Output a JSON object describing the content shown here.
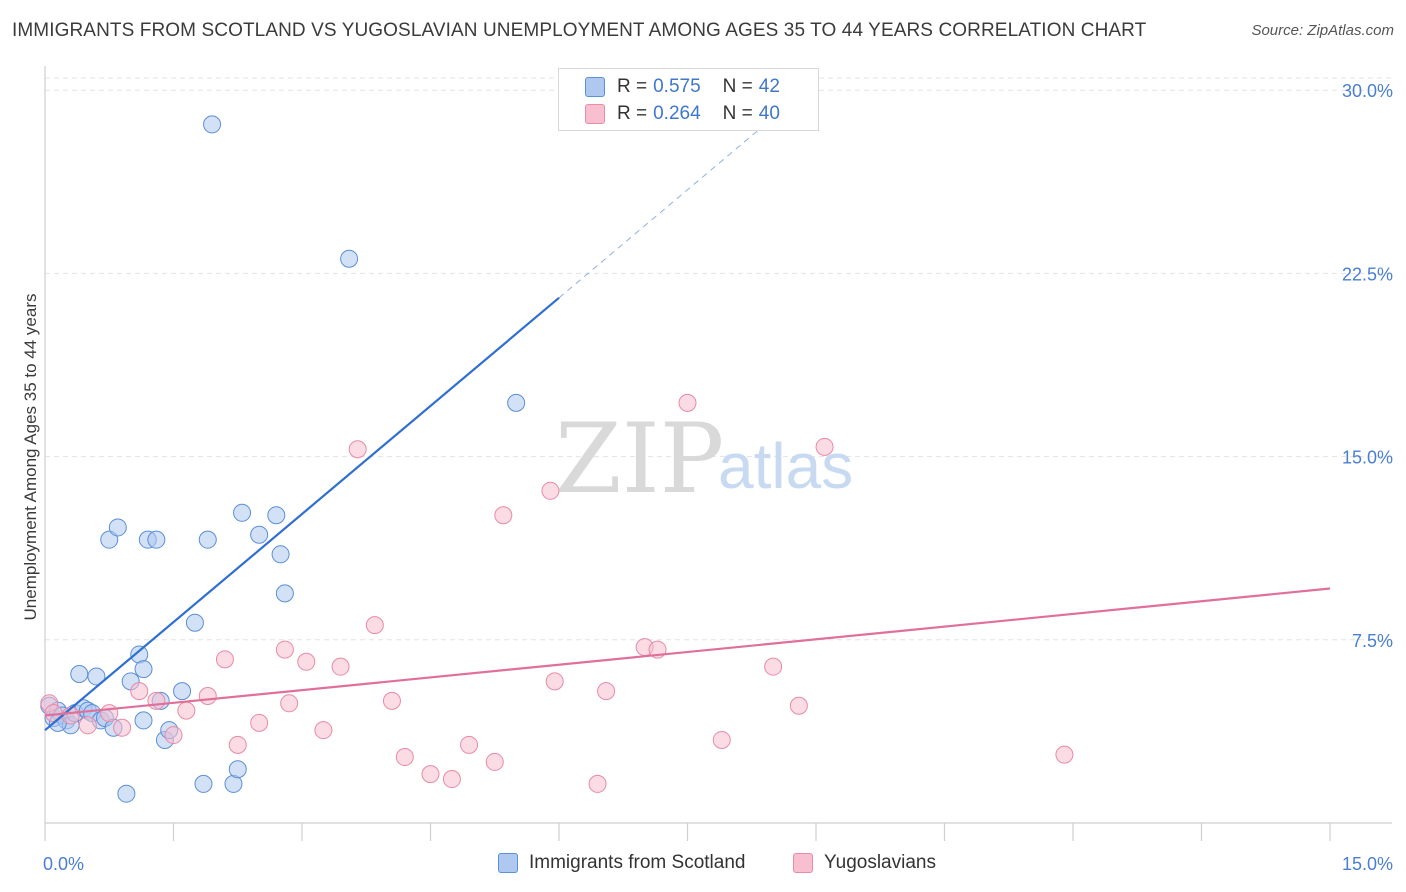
{
  "title": "IMMIGRANTS FROM SCOTLAND VS YUGOSLAVIAN UNEMPLOYMENT AMONG AGES 35 TO 44 YEARS CORRELATION CHART",
  "source": "Source: ZipAtlas.com",
  "watermark": {
    "zip": "ZIP",
    "atlas": "atlas"
  },
  "colors": {
    "blue_fill": "#aec8f0",
    "blue_stroke": "#5b8fd6",
    "blue_line": "#2e6fd0",
    "pink_fill": "#f7bfd0",
    "pink_stroke": "#e98aa8",
    "pink_line": "#e0709a",
    "grid": "#e3e3e3",
    "axis_text": "#4a7fd0"
  },
  "legend": {
    "rows": [
      {
        "r_label": "R =",
        "r_value": "0.575",
        "n_label": "N =",
        "n_value": "42"
      },
      {
        "r_label": "R =",
        "r_value": "0.264",
        "n_label": "N =",
        "n_value": "40"
      }
    ]
  },
  "bottom_legend": {
    "blue": "Immigrants from Scotland",
    "pink": "Yugoslavians"
  },
  "chart_data": {
    "type": "scatter",
    "title": "IMMIGRANTS FROM SCOTLAND VS YUGOSLAVIAN UNEMPLOYMENT AMONG AGES 35 TO 44 YEARS CORRELATION CHART",
    "xlabel": "",
    "ylabel": "Unemployment Among Ages 35 to 44 years",
    "xlim": [
      0,
      15
    ],
    "ylim": [
      0,
      30.5
    ],
    "x_tick_labels": [
      "0.0%",
      "15.0%"
    ],
    "y_ticks": [
      7.5,
      15.0,
      22.5,
      30.0
    ],
    "y_tick_labels": [
      "7.5%",
      "15.0%",
      "22.5%",
      "30.0%"
    ],
    "grid": true,
    "legend_position": "top-center",
    "series": [
      {
        "name": "Immigrants from Scotland",
        "color": "blue",
        "R": 0.575,
        "N": 42,
        "trend": {
          "x0": 0.0,
          "y0": 3.8,
          "x1": 6.0,
          "y1": 21.5,
          "dash_to_x": 9.0
        },
        "points": [
          [
            0.05,
            4.8
          ],
          [
            0.1,
            4.3
          ],
          [
            0.15,
            4.6
          ],
          [
            0.2,
            4.4
          ],
          [
            0.25,
            4.2
          ],
          [
            0.3,
            4.0
          ],
          [
            0.35,
            4.5
          ],
          [
            0.4,
            6.1
          ],
          [
            0.45,
            4.7
          ],
          [
            0.5,
            4.6
          ],
          [
            0.55,
            4.5
          ],
          [
            0.6,
            6.0
          ],
          [
            0.65,
            4.2
          ],
          [
            0.7,
            4.3
          ],
          [
            0.75,
            11.6
          ],
          [
            0.8,
            3.9
          ],
          [
            0.85,
            12.1
          ],
          [
            0.95,
            1.2
          ],
          [
            1.0,
            5.8
          ],
          [
            1.1,
            6.9
          ],
          [
            1.15,
            4.2
          ],
          [
            1.2,
            11.6
          ],
          [
            1.3,
            11.6
          ],
          [
            1.35,
            5.0
          ],
          [
            1.4,
            3.4
          ],
          [
            1.45,
            3.8
          ],
          [
            1.6,
            5.4
          ],
          [
            1.75,
            8.2
          ],
          [
            1.85,
            1.6
          ],
          [
            1.9,
            11.6
          ],
          [
            1.95,
            28.6
          ],
          [
            2.2,
            1.6
          ],
          [
            2.25,
            2.2
          ],
          [
            2.3,
            12.7
          ],
          [
            2.5,
            11.8
          ],
          [
            2.7,
            12.6
          ],
          [
            2.75,
            11.0
          ],
          [
            2.8,
            9.4
          ],
          [
            3.55,
            23.1
          ],
          [
            5.5,
            17.2
          ],
          [
            0.15,
            4.1
          ],
          [
            1.15,
            6.3
          ]
        ]
      },
      {
        "name": "Yugoslavians",
        "color": "pink",
        "R": 0.264,
        "N": 40,
        "trend": {
          "x0": 0.0,
          "y0": 4.4,
          "x1": 15.0,
          "y1": 9.6
        },
        "points": [
          [
            0.05,
            4.9
          ],
          [
            0.3,
            4.4
          ],
          [
            0.5,
            4.0
          ],
          [
            0.75,
            4.5
          ],
          [
            0.9,
            3.9
          ],
          [
            1.1,
            5.4
          ],
          [
            1.3,
            5.0
          ],
          [
            1.5,
            3.6
          ],
          [
            1.65,
            4.6
          ],
          [
            1.9,
            5.2
          ],
          [
            2.1,
            6.7
          ],
          [
            2.25,
            3.2
          ],
          [
            2.5,
            4.1
          ],
          [
            2.8,
            7.1
          ],
          [
            2.85,
            4.9
          ],
          [
            3.05,
            6.6
          ],
          [
            3.25,
            3.8
          ],
          [
            3.45,
            6.4
          ],
          [
            3.65,
            15.3
          ],
          [
            3.85,
            8.1
          ],
          [
            4.05,
            5.0
          ],
          [
            4.2,
            2.7
          ],
          [
            4.5,
            2.0
          ],
          [
            4.75,
            1.8
          ],
          [
            4.95,
            3.2
          ],
          [
            5.25,
            2.5
          ],
          [
            5.35,
            12.6
          ],
          [
            5.9,
            13.6
          ],
          [
            5.95,
            5.8
          ],
          [
            6.45,
            1.6
          ],
          [
            6.55,
            5.4
          ],
          [
            7.0,
            7.2
          ],
          [
            7.15,
            7.1
          ],
          [
            7.5,
            17.2
          ],
          [
            7.9,
            3.4
          ],
          [
            8.5,
            6.4
          ],
          [
            8.8,
            4.8
          ],
          [
            9.1,
            15.4
          ],
          [
            11.9,
            2.8
          ],
          [
            0.1,
            4.5
          ]
        ]
      }
    ]
  }
}
